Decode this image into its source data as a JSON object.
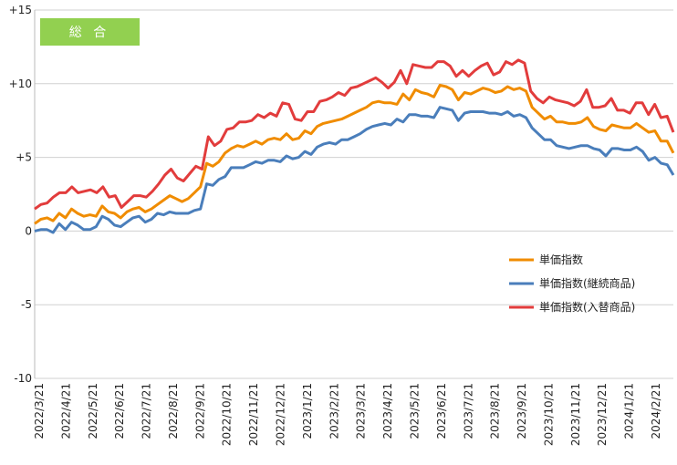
{
  "chart_data": {
    "type": "line",
    "title": "総 合",
    "title_badge_color": "#92D050",
    "ylim": [
      -10,
      15
    ],
    "y_ticks": [
      {
        "value": 15,
        "label": "+15"
      },
      {
        "value": 10,
        "label": "+10"
      },
      {
        "value": 5,
        "label": "+5"
      },
      {
        "value": 0,
        "label": "0"
      },
      {
        "value": -5,
        "label": "-5"
      },
      {
        "value": -10,
        "label": "-10"
      }
    ],
    "x_labels": [
      "2022/3/21",
      "2022/4/21",
      "2022/5/21",
      "2022/6/21",
      "2022/7/21",
      "2022/8/21",
      "2022/9/21",
      "2022/10/21",
      "2022/11/21",
      "2022/12/21",
      "2023/1/21",
      "2023/2/21",
      "2023/3/21",
      "2023/4/21",
      "2023/5/21",
      "2023/6/21",
      "2023/7/21",
      "2023/8/21",
      "2023/9/21",
      "2023/10/21",
      "2023/11/21",
      "2023/12/21",
      "2024/1/21",
      "2024/2/21"
    ],
    "grid": "horizontal",
    "legend_position": "right",
    "series": [
      {
        "name": "単価指数",
        "color": "#F08C00",
        "values": [
          0.5,
          0.8,
          0.9,
          0.7,
          1.2,
          0.9,
          1.5,
          1.2,
          1.0,
          1.1,
          1.0,
          1.7,
          1.3,
          1.2,
          0.9,
          1.3,
          1.5,
          1.6,
          1.3,
          1.5,
          1.8,
          2.1,
          2.4,
          2.2,
          2.0,
          2.2,
          2.6,
          3.0,
          4.6,
          4.4,
          4.7,
          5.3,
          5.6,
          5.8,
          5.7,
          5.9,
          6.1,
          5.9,
          6.2,
          6.3,
          6.2,
          6.6,
          6.2,
          6.3,
          6.8,
          6.6,
          7.1,
          7.3,
          7.4,
          7.5,
          7.6,
          7.8,
          8.0,
          8.2,
          8.4,
          8.7,
          8.8,
          8.7,
          8.7,
          8.6,
          9.3,
          8.9,
          9.6,
          9.4,
          9.3,
          9.1,
          9.9,
          9.8,
          9.6,
          8.9,
          9.4,
          9.3,
          9.5,
          9.7,
          9.6,
          9.4,
          9.5,
          9.8,
          9.6,
          9.7,
          9.5,
          8.4,
          8.0,
          7.6,
          7.8,
          7.4,
          7.4,
          7.3,
          7.3,
          7.4,
          7.7,
          7.1,
          6.9,
          6.8,
          7.2,
          7.1,
          7.0,
          7.0,
          7.3,
          7.0,
          6.7,
          6.8,
          6.1,
          6.1,
          5.3
        ]
      },
      {
        "name": "単価指数(継続商品)",
        "color": "#4A7EBB",
        "values": [
          0.0,
          0.1,
          0.1,
          -0.1,
          0.5,
          0.1,
          0.6,
          0.4,
          0.1,
          0.1,
          0.3,
          1.0,
          0.8,
          0.4,
          0.3,
          0.6,
          0.9,
          1.0,
          0.6,
          0.8,
          1.2,
          1.1,
          1.3,
          1.2,
          1.2,
          1.2,
          1.4,
          1.5,
          3.2,
          3.1,
          3.5,
          3.7,
          4.3,
          4.3,
          4.3,
          4.5,
          4.7,
          4.6,
          4.8,
          4.8,
          4.7,
          5.1,
          4.9,
          5.0,
          5.4,
          5.2,
          5.7,
          5.9,
          6.0,
          5.9,
          6.2,
          6.2,
          6.4,
          6.6,
          6.9,
          7.1,
          7.2,
          7.3,
          7.2,
          7.6,
          7.4,
          7.9,
          7.9,
          7.8,
          7.8,
          7.7,
          8.4,
          8.3,
          8.2,
          7.5,
          8.0,
          8.1,
          8.1,
          8.1,
          8.0,
          8.0,
          7.9,
          8.1,
          7.8,
          7.9,
          7.7,
          7.0,
          6.6,
          6.2,
          6.2,
          5.8,
          5.7,
          5.6,
          5.7,
          5.8,
          5.8,
          5.6,
          5.5,
          5.1,
          5.6,
          5.6,
          5.5,
          5.5,
          5.7,
          5.4,
          4.8,
          5.0,
          4.6,
          4.5,
          3.8
        ]
      },
      {
        "name": "単価指数(入替商品)",
        "color": "#E23C3C",
        "values": [
          1.5,
          1.8,
          1.9,
          2.3,
          2.6,
          2.6,
          3.0,
          2.6,
          2.7,
          2.8,
          2.6,
          3.0,
          2.3,
          2.4,
          1.6,
          2.0,
          2.4,
          2.4,
          2.3,
          2.7,
          3.2,
          3.8,
          4.2,
          3.6,
          3.4,
          3.9,
          4.4,
          4.2,
          6.4,
          5.8,
          6.1,
          6.9,
          7.0,
          7.4,
          7.4,
          7.5,
          7.9,
          7.7,
          8.0,
          7.8,
          8.7,
          8.6,
          7.6,
          7.5,
          8.1,
          8.1,
          8.8,
          8.9,
          9.1,
          9.4,
          9.2,
          9.7,
          9.8,
          10.0,
          10.2,
          10.4,
          10.1,
          9.7,
          10.1,
          10.9,
          10.0,
          11.3,
          11.2,
          11.1,
          11.1,
          11.5,
          11.5,
          11.2,
          10.5,
          10.9,
          10.5,
          10.9,
          11.2,
          11.4,
          10.6,
          10.8,
          11.5,
          11.3,
          11.6,
          11.4,
          9.5,
          9.0,
          8.7,
          9.1,
          8.9,
          8.8,
          8.7,
          8.5,
          8.8,
          9.6,
          8.4,
          8.4,
          8.5,
          9.0,
          8.2,
          8.2,
          8.0,
          8.7,
          8.7,
          7.9,
          8.6,
          7.7,
          7.8,
          6.7
        ]
      }
    ]
  }
}
